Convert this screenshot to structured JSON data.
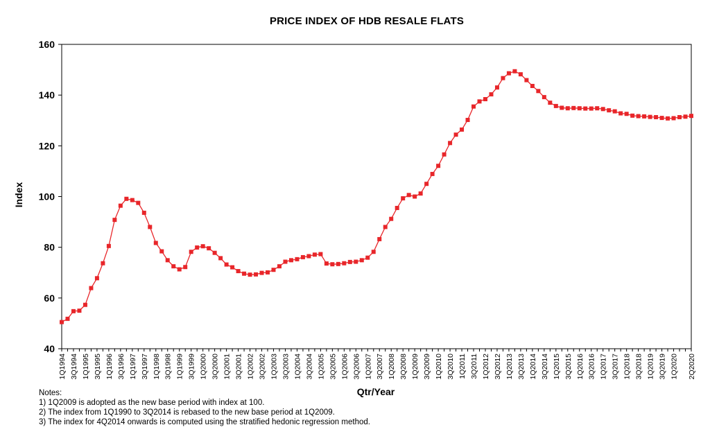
{
  "chart_data": {
    "type": "line",
    "title": "PRICE INDEX OF HDB RESALE FLATS",
    "xlabel": "Qtr/Year",
    "ylabel": "Index",
    "ylim": [
      40,
      160
    ],
    "yticks": [
      40,
      60,
      80,
      100,
      120,
      140,
      160
    ],
    "grid": false,
    "legend": "none",
    "colors": {
      "series": "#e8262a",
      "axis": "#000000"
    },
    "x_tick_labels": [
      "1Q1994",
      "3Q1994",
      "1Q1995",
      "3Q1995",
      "1Q1996",
      "3Q1996",
      "1Q1997",
      "3Q1997",
      "1Q1998",
      "3Q1998",
      "1Q1999",
      "3Q1999",
      "1Q2000",
      "3Q2000",
      "1Q2001",
      "3Q2001",
      "1Q2002",
      "3Q2002",
      "1Q2003",
      "3Q2003",
      "1Q2004",
      "3Q2004",
      "1Q2005",
      "3Q2005",
      "1Q2006",
      "3Q2006",
      "1Q2007",
      "3Q2007",
      "1Q2008",
      "3Q2008",
      "1Q2009",
      "3Q2009",
      "1Q2010",
      "3Q2010",
      "1Q2011",
      "3Q2011",
      "1Q2012",
      "3Q2012",
      "1Q2013",
      "3Q2013",
      "1Q2014",
      "3Q2014",
      "1Q2015",
      "3Q2015",
      "1Q2016",
      "3Q2016",
      "1Q2017",
      "3Q2017",
      "1Q2018",
      "3Q2018",
      "1Q2019",
      "3Q2019",
      "1Q2020",
      "2Q2020"
    ],
    "series": [
      {
        "values": [
          50.5,
          51.8,
          54.8,
          55.0,
          57.3,
          63.9,
          67.8,
          73.7,
          80.5,
          90.8,
          96.4,
          99.1,
          98.6,
          97.5,
          93.6,
          88.0,
          81.7,
          78.4,
          74.9,
          72.5,
          71.3,
          72.2,
          78.2,
          79.9,
          80.4,
          79.6,
          77.8,
          75.7,
          73.2,
          72.1,
          70.6,
          69.6,
          69.2,
          69.3,
          69.9,
          70.1,
          71.1,
          72.5,
          74.3,
          74.9,
          75.3,
          76.1,
          76.5,
          77.1,
          77.3,
          73.6,
          73.3,
          73.4,
          73.7,
          74.2,
          74.3,
          74.9,
          75.9,
          78.2,
          83.2,
          88.0,
          91.2,
          95.5,
          99.3,
          100.6,
          100.0,
          101.2,
          105.0,
          108.9,
          112.1,
          116.6,
          121.1,
          124.4,
          126.4,
          130.2,
          135.5,
          137.5,
          138.4,
          140.3,
          143.0,
          146.7,
          148.6,
          149.4,
          148.2,
          145.9,
          143.6,
          141.6,
          139.2,
          137.0,
          135.7,
          135.0,
          134.8,
          134.9,
          134.8,
          134.7,
          134.7,
          134.8,
          134.5,
          134.0,
          133.6,
          132.8,
          132.6,
          131.9,
          131.7,
          131.6,
          131.4,
          131.3,
          131.0,
          130.8,
          130.9,
          131.3,
          131.5,
          131.8
        ]
      }
    ],
    "notes": [
      "Notes:",
      "1) 1Q2009 is adopted as the new base period with index at 100.",
      "2) The index from 1Q1990 to 3Q2014 is rebased to the new base  period at 1Q2009.",
      "3) The index for 4Q2014 onwards is computed using the stratified hedonic regression method."
    ]
  }
}
